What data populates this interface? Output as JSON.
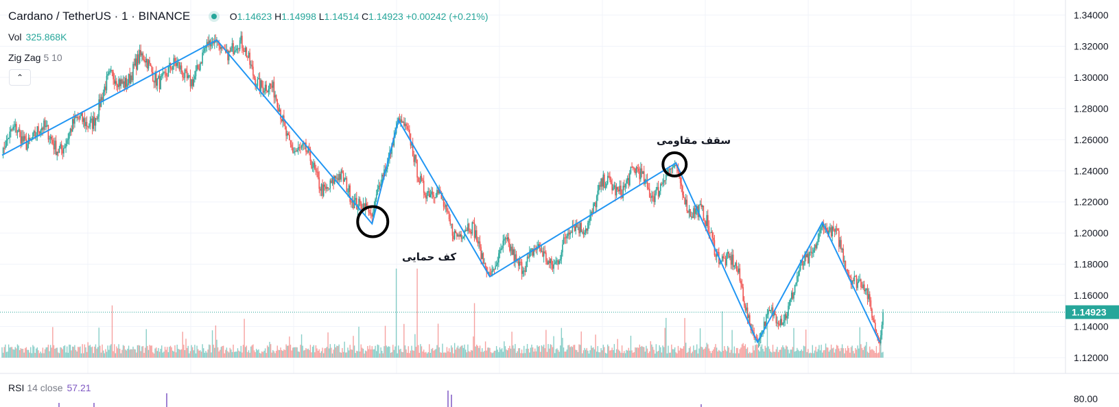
{
  "header": {
    "symbol": "Cardano / TetherUS",
    "interval": "1",
    "exchange": "BINANCE",
    "sep": "·",
    "ohlc": {
      "o_label": "O",
      "o": "1.14623",
      "h_label": "H",
      "h": "1.14998",
      "l_label": "L",
      "l": "1.14514",
      "c_label": "C",
      "c": "1.14923",
      "change": "+0.00242 (+0.21%)"
    }
  },
  "volume": {
    "label": "Vol",
    "value": "325.868K"
  },
  "zigzag": {
    "label": "Zig Zag",
    "params": "5 10"
  },
  "collapse_icon": "chevron-up-icon",
  "rsi": {
    "label": "RSI",
    "params": "14 close",
    "value": "57.21",
    "axis_label": "80.00"
  },
  "annotations": {
    "support": "کف حمایی",
    "resistance": "سقف مقاومی"
  },
  "price_axis": {
    "ticks": [
      "1.34000",
      "1.32000",
      "1.30000",
      "1.28000",
      "1.26000",
      "1.24000",
      "1.22000",
      "1.20000",
      "1.18000",
      "1.16000",
      "1.14000",
      "1.12000"
    ],
    "last_price": "1.14923"
  },
  "colors": {
    "up": "#26a69a",
    "down": "#ef5350",
    "zigzag": "#2196f3",
    "rsi": "#7e57c2",
    "last_price_bg": "#26a69a"
  },
  "chart_data": {
    "type": "candlestick",
    "title": "Cardano / TetherUS · 1 · BINANCE",
    "ylim": [
      1.11,
      1.345
    ],
    "zigzag_pivots": [
      {
        "candle": 0,
        "price": 1.25
      },
      {
        "candle": 195,
        "price": 1.324
      },
      {
        "candle": 336,
        "price": 1.206
      },
      {
        "candle": 360,
        "price": 1.2725
      },
      {
        "candle": 443,
        "price": 1.172
      },
      {
        "candle": 612,
        "price": 1.245
      },
      {
        "candle": 686,
        "price": 1.13
      },
      {
        "candle": 745,
        "price": 1.207
      },
      {
        "candle": 797,
        "price": 1.13
      },
      {
        "candle": 800,
        "price": 1.1492
      }
    ],
    "last": 1.14923
  }
}
